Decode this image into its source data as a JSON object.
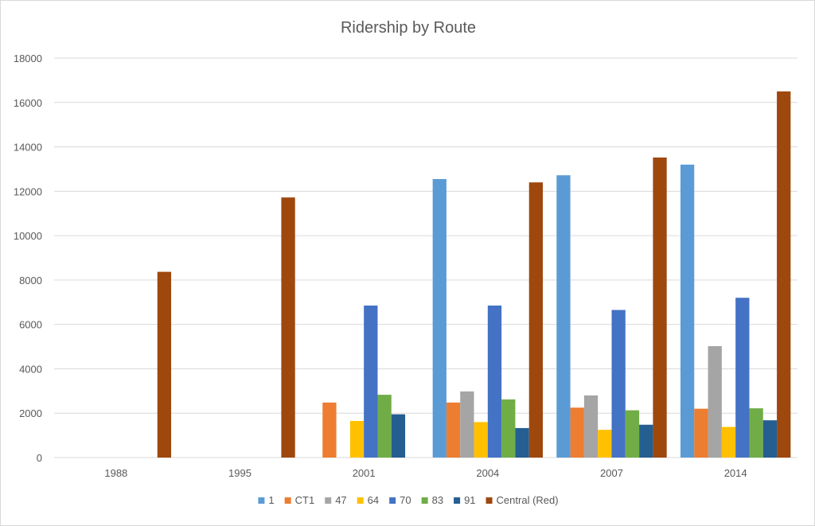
{
  "chart_data": {
    "type": "bar",
    "title": "Ridership by Route",
    "xlabel": "",
    "ylabel": "",
    "categories": [
      "1988",
      "1995",
      "2001",
      "2004",
      "2007",
      "2014"
    ],
    "ylim": [
      0,
      18000
    ],
    "yticks": [
      0,
      2000,
      4000,
      6000,
      8000,
      10000,
      12000,
      14000,
      16000,
      18000
    ],
    "grid": true,
    "legend_position": "bottom",
    "series": [
      {
        "name": "1",
        "color": "#5B9BD5",
        "values": [
          null,
          null,
          null,
          12550,
          12720,
          13200
        ]
      },
      {
        "name": "CT1",
        "color": "#ED7D31",
        "values": [
          null,
          null,
          2480,
          2480,
          2250,
          2200
        ]
      },
      {
        "name": "47",
        "color": "#A5A5A5",
        "values": [
          null,
          null,
          null,
          2980,
          2800,
          5020
        ]
      },
      {
        "name": "64",
        "color": "#FFC000",
        "values": [
          null,
          null,
          1650,
          1600,
          1250,
          1380
        ]
      },
      {
        "name": "70",
        "color": "#4472C4",
        "values": [
          null,
          null,
          6850,
          6850,
          6650,
          7200
        ]
      },
      {
        "name": "83",
        "color": "#70AD47",
        "values": [
          null,
          null,
          2830,
          2620,
          2130,
          2220
        ]
      },
      {
        "name": "91",
        "color": "#255E91",
        "values": [
          null,
          null,
          1950,
          1330,
          1480,
          1680
        ]
      },
      {
        "name": "Central (Red)",
        "color": "#9E480E",
        "values": [
          8370,
          11720,
          null,
          12400,
          13520,
          16500
        ]
      }
    ]
  }
}
